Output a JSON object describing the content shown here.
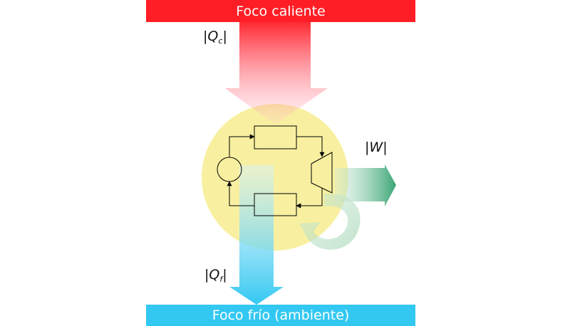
{
  "hot_reservoir": {
    "label": "Foco caliente",
    "color": "#ff1e26"
  },
  "cold_reservoir": {
    "label": "Foco frío (ambiente)",
    "color": "#33c8f2"
  },
  "heat_in": {
    "bar": "|",
    "symbol": "Q",
    "subscript": "c"
  },
  "heat_out": {
    "bar": "|",
    "symbol": "Q",
    "subscript": "f"
  },
  "work": {
    "bar": "|",
    "symbol": "W",
    "color": "#3aa574"
  },
  "engine_circle_color": "#f8f0a0"
}
